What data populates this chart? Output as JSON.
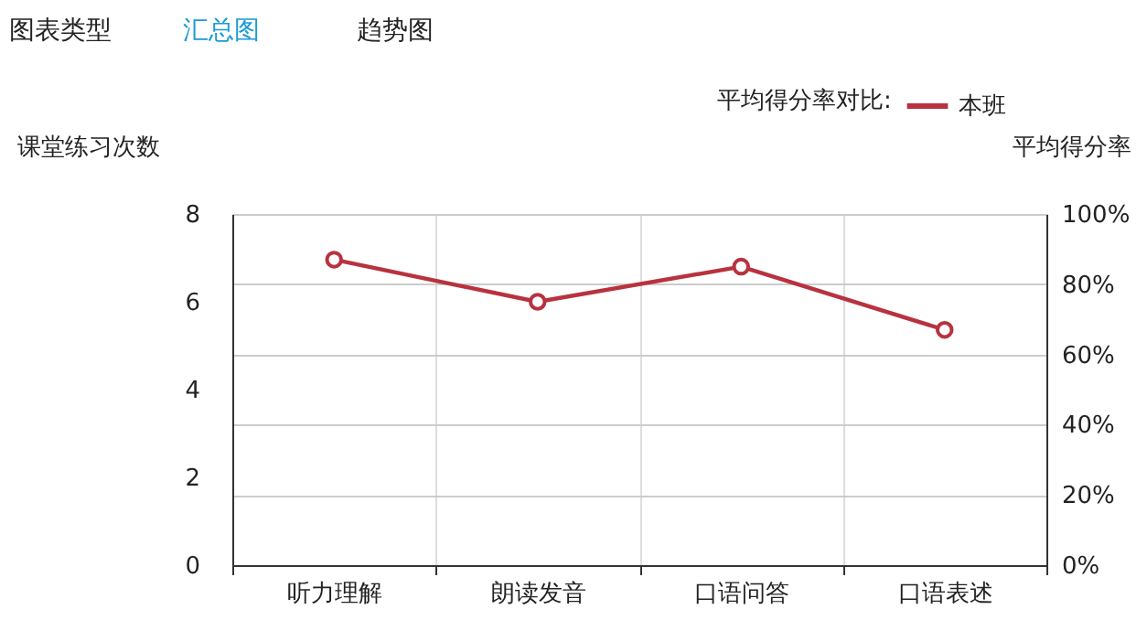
{
  "chart_data": {
    "type": "line",
    "annotations": [
      "图表类型",
      "汇总图",
      "趋势图"
    ],
    "ylabel": "课堂练习次数",
    "y2label": "平均得分率",
    "legend_title": "平均得分率对比:",
    "categories": [
      "听力理解",
      "朗读发音",
      "口语问答",
      "口语表述"
    ],
    "series": [
      {
        "name": "本班",
        "color": "#b8323f",
        "axis": "y2",
        "values": [
          87,
          75,
          85,
          67
        ]
      }
    ],
    "ylim": [
      0,
      8
    ],
    "yticks": [
      0,
      2,
      4,
      6,
      8
    ],
    "y2lim": [
      0,
      100
    ],
    "y2ticks": [
      {
        "value": 0,
        "label": "0%"
      },
      {
        "value": 20,
        "label": "20%"
      },
      {
        "value": 40,
        "label": "40%"
      },
      {
        "value": 60,
        "label": "60%"
      },
      {
        "value": 80,
        "label": "80%"
      },
      {
        "value": 100,
        "label": "100%"
      }
    ],
    "grid": true,
    "legend": "top right",
    "marker": "circle",
    "line_style": "solid"
  }
}
